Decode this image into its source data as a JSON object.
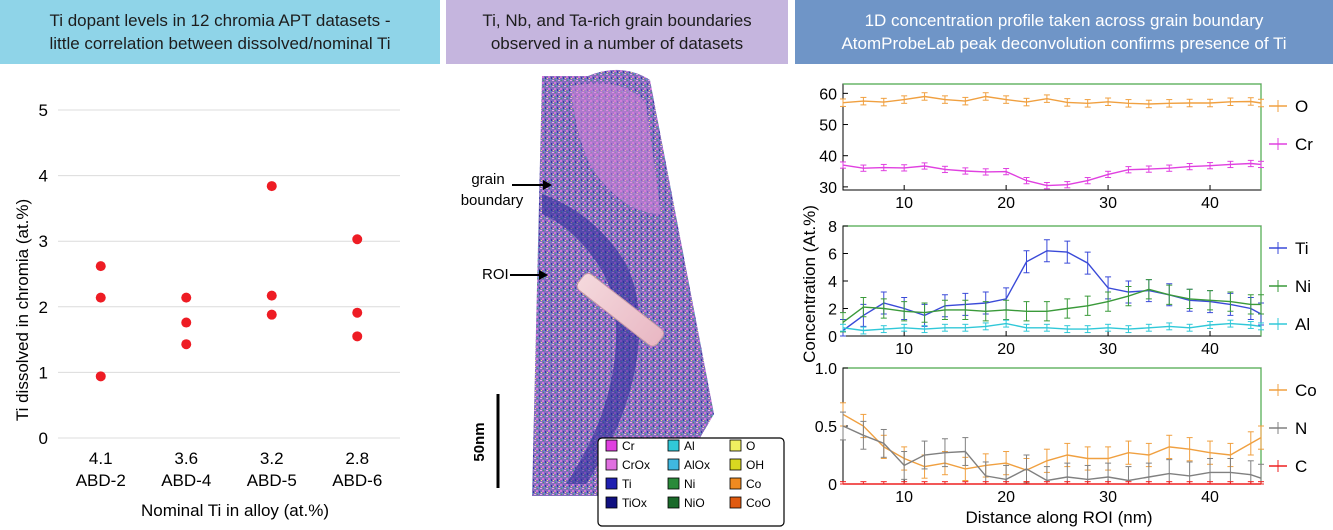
{
  "headers": {
    "left_line1": "Ti dopant levels in 12 chromia APT datasets -",
    "left_line2": "little correlation between dissolved/nominal Ti",
    "mid_line1": "Ti, Nb, and Ta-rich grain boundaries",
    "mid_line2": "observed in a number of datasets",
    "right_line1": "1D concentration profile taken across grain boundary",
    "right_line2": "AtomProbeLab peak deconvolution confirms presence of Ti"
  },
  "colors": {
    "dot": "#ee1c24",
    "O": "#f0a040",
    "Cr": "#e040e0",
    "Ti": "#3a4ad8",
    "Ni": "#3a9a3a",
    "Al": "#30c8d8",
    "Co": "#f0a040",
    "N": "#808080",
    "C": "#ee2020"
  },
  "chart_data": [
    {
      "type": "scatter",
      "title": "",
      "ylabel": "Ti dissolved in chromia (at.%)",
      "xlabel": "Nominal Ti in alloy (at.%)",
      "ylim": [
        0,
        5
      ],
      "yticks": [
        "0",
        "1",
        "2",
        "3",
        "4",
        "5"
      ],
      "categories": [
        {
          "nominal": "4.1",
          "name": "ABD-2"
        },
        {
          "nominal": "3.6",
          "name": "ABD-4"
        },
        {
          "nominal": "3.2",
          "name": "ABD-5"
        },
        {
          "nominal": "2.8",
          "name": "ABD-6"
        }
      ],
      "points": [
        {
          "cat": 0,
          "y": 2.62
        },
        {
          "cat": 0,
          "y": 2.14
        },
        {
          "cat": 0,
          "y": 0.94
        },
        {
          "cat": 1,
          "y": 2.14
        },
        {
          "cat": 1,
          "y": 1.76
        },
        {
          "cat": 1,
          "y": 1.43
        },
        {
          "cat": 2,
          "y": 3.84
        },
        {
          "cat": 2,
          "y": 2.17
        },
        {
          "cat": 2,
          "y": 1.88
        },
        {
          "cat": 3,
          "y": 3.03
        },
        {
          "cat": 3,
          "y": 1.91
        },
        {
          "cat": 3,
          "y": 1.55
        }
      ],
      "grid": true
    },
    {
      "type": "line",
      "ylabel": "Concentration (At.%)",
      "xlabel": "Distance along ROI (nm)",
      "xlim": [
        4,
        45
      ],
      "xticks": [
        10,
        20,
        30,
        40
      ],
      "x": [
        4,
        6,
        8,
        10,
        12,
        14,
        16,
        18,
        20,
        22,
        24,
        26,
        28,
        30,
        32,
        34,
        36,
        38,
        40,
        42,
        44,
        45
      ],
      "panels": [
        {
          "ylim": [
            29,
            63
          ],
          "yticks": [
            30,
            40,
            50,
            60
          ],
          "series": [
            {
              "name": "O",
              "values": [
                57,
                57.5,
                57.2,
                58,
                59,
                58,
                57.5,
                59,
                58,
                57.2,
                58.3,
                57.1,
                56.8,
                57.3,
                56.8,
                56.6,
                56.8,
                56.9,
                56.9,
                57.3,
                57.4,
                56.9
              ],
              "err": 1.2
            },
            {
              "name": "Cr",
              "values": [
                37,
                36,
                36.2,
                36.1,
                36.7,
                35.6,
                35.1,
                34.8,
                34.9,
                32,
                30.4,
                30.7,
                32,
                34,
                35.5,
                35.7,
                36,
                36.5,
                36.8,
                37.2,
                37.5,
                37.2
              ],
              "err": 1.0
            }
          ]
        },
        {
          "ylim": [
            0,
            8
          ],
          "yticks": [
            0,
            2,
            4,
            6,
            8
          ],
          "series": [
            {
              "name": "Ti",
              "values": [
                0.4,
                1.5,
                2.4,
                2,
                1.5,
                2.2,
                2.3,
                2.4,
                2.7,
                5.4,
                6.2,
                6.1,
                5.3,
                3.5,
                3.2,
                3.3,
                3,
                2.6,
                2.5,
                2.3,
                2,
                1.6
              ],
              "err": 0.8
            },
            {
              "name": "Ni",
              "values": [
                1,
                2.1,
                2,
                1.8,
                1.7,
                1.9,
                1.9,
                1.8,
                1.9,
                1.8,
                1.8,
                2,
                2.2,
                2.5,
                2.9,
                3.4,
                3,
                2.7,
                2.6,
                2.5,
                2.3,
                2.3
              ],
              "err": 0.7
            },
            {
              "name": "Al",
              "values": [
                0.6,
                0.4,
                0.5,
                0.6,
                0.5,
                0.6,
                0.6,
                0.7,
                0.9,
                0.6,
                0.6,
                0.5,
                0.5,
                0.6,
                0.5,
                0.6,
                0.7,
                0.6,
                0.8,
                0.9,
                0.8,
                0.7
              ],
              "err": 0.25
            }
          ]
        },
        {
          "ylim": [
            0,
            1
          ],
          "yticks": [
            0,
            0.5,
            1.0
          ],
          "yticklabels": [
            "0",
            "0.5",
            "1.0"
          ],
          "series": [
            {
              "name": "Co",
              "values": [
                0.6,
                0.5,
                0.32,
                0.22,
                0.15,
                0.18,
                0.13,
                0.16,
                0.18,
                0.12,
                0.2,
                0.25,
                0.22,
                0.22,
                0.27,
                0.25,
                0.32,
                0.3,
                0.27,
                0.25,
                0.35,
                0.4
              ],
              "err": 0.1
            },
            {
              "name": "N",
              "values": [
                0.5,
                0.42,
                0.35,
                0.16,
                0.25,
                0.27,
                0.28,
                0.07,
                0.04,
                0.13,
                0.03,
                0.06,
                0.04,
                0.06,
                0.03,
                0.06,
                0.09,
                0.07,
                0.1,
                0.1,
                0.08,
                0.05
              ],
              "err": 0.12
            },
            {
              "name": "C",
              "values": [
                0,
                0,
                0,
                0,
                0,
                0,
                0,
                0,
                0,
                0,
                0,
                0,
                0,
                0,
                0,
                0,
                0,
                0,
                0,
                0,
                0,
                0
              ],
              "err": 0.02
            }
          ]
        }
      ]
    }
  ],
  "apt": {
    "label_grain": "grain",
    "label_boundary": "boundary",
    "label_roi": "ROI",
    "scale": "50nm",
    "legend": [
      {
        "label": "Cr",
        "color": "#e040e0"
      },
      {
        "label": "Al",
        "color": "#30c8d8"
      },
      {
        "label": "O",
        "color": "#f0f060"
      },
      {
        "label": "CrOx",
        "color": "#e070e0"
      },
      {
        "label": "AlOx",
        "color": "#40b8e0"
      },
      {
        "label": "OH",
        "color": "#d8d820"
      },
      {
        "label": "Ti",
        "color": "#1f20b0"
      },
      {
        "label": "Ni",
        "color": "#2a8a3a"
      },
      {
        "label": "Co",
        "color": "#f08a20"
      },
      {
        "label": "TiOx",
        "color": "#101080"
      },
      {
        "label": "NiO",
        "color": "#1a6a2a"
      },
      {
        "label": "CoO",
        "color": "#e05a10"
      }
    ]
  }
}
